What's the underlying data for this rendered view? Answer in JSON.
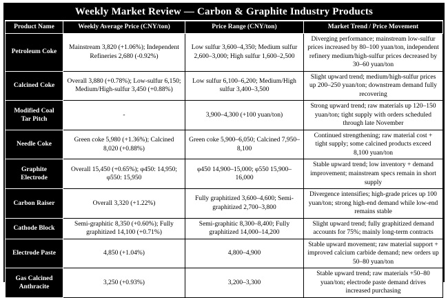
{
  "title": "Weekly Market Review — Carbon & Graphite Industry Products",
  "colors": {
    "header_bg": "#000000",
    "header_text": "#ffffff",
    "body_bg": "#ffffff",
    "body_text": "#000000"
  },
  "table": {
    "headers": [
      "Product Name",
      "Weekly Average Price (CNY/ton)",
      "Price Range (CNY/ton)",
      "Market Trend / Price Movement"
    ],
    "rows": [
      {
        "product": "Petroleum Coke",
        "avg": "Mainstream 3,820 (+1.06%); Independent Refineries 2,680 (-0.92%)",
        "range": "Low sulfur 3,600–4,350; Medium sulfur 2,600–3,000; High sulfur 1,600–2,500",
        "trend": "Diverging performance; mainstream low-sulfur prices increased by 80–100 yuan/ton, independent refinery medium/high-sulfur prices decreased by 30–60 yuan/ton"
      },
      {
        "product": "Calcined Coke",
        "avg": "Overall 3,880 (+0.78%); Low-sulfur 6,150; Medium/High-sulfur 3,450 (+0.88%)",
        "range": "Low sulfur 6,100–6,200; Medium/High sulfur 3,400–3,500",
        "trend": "Slight upward trend; medium/high-sulfur prices up 200–250 yuan/ton; downstream demand fully recovering"
      },
      {
        "product": "Modified Coal Tar Pitch",
        "avg": "-",
        "range": "3,900–4,300 (+100 yuan/ton)",
        "trend": "Strong upward trend; raw materials up 120–150 yuan/ton; tight supply with orders scheduled through late November"
      },
      {
        "product": "Needle Coke",
        "avg": "Green coke 5,980 (+1.36%); Calcined 8,020 (+0.88%)",
        "range": "Green coke 5,900–6,050; Calcined 7,950–8,100",
        "trend": "Continued strengthening; raw material cost + tight supply; some calcined products exceed 8,100 yuan/ton"
      },
      {
        "product": "Graphite Electrode",
        "avg": "Overall 15,450 (+0.65%); φ450: 14,950; φ550: 15,950",
        "range": "φ450 14,900–15,000; φ550 15,900–16,000",
        "trend": "Stable upward trend; low inventory + demand improvement; mainstream specs remain in short supply"
      },
      {
        "product": "Carbon Raiser",
        "avg": "Overall 3,320 (+1.22%)",
        "range": "Fully graphitized 3,600–4,600; Semi-graphitized 2,700–3,800",
        "trend": "Divergence intensifies; high-grade prices up 100 yuan/ton; strong high-end demand while low-end remains stable"
      },
      {
        "product": "Cathode Block",
        "avg": "Semi-graphitic 8,350 (+0.60%); Fully graphitized 14,100 (+0.71%)",
        "range": "Semi-graphitic 8,300–8,400; Fully graphitized 14,000–14,200",
        "trend": "Slight upward trend; fully graphitized demand accounts for 75%; mainly long-term contracts"
      },
      {
        "product": "Electrode Paste",
        "avg": "4,850 (+1.04%)",
        "range": "4,800–4,900",
        "trend": "Stable upward movement; raw material support + improved calcium carbide demand; new orders up 50–80 yuan/ton"
      },
      {
        "product": "Gas Calcined Anthracite",
        "avg": "3,250 (+0.93%)",
        "range": "3,200–3,300",
        "trend": "Stable upward trend; raw materials +50–80 yuan/ton; electrode paste demand drives increased purchasing"
      }
    ]
  }
}
